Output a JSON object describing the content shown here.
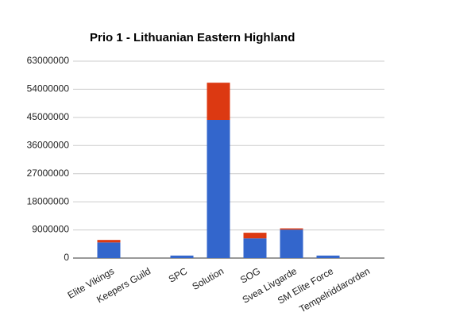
{
  "chart_data": {
    "type": "stacked_bar",
    "title": "Prio 1 - Lithuanian Eastern Highland",
    "categories": [
      "Elite Vikings",
      "Keepers Guild",
      "SPC",
      "Solution",
      "SOG",
      "Svea Livgarde",
      "SM Elite Force",
      "Tempelriddarorden"
    ],
    "series": [
      {
        "color": "#3366cc",
        "values": [
          5000000,
          0,
          800000,
          44200000,
          6300000,
          9100000,
          800000,
          0
        ]
      },
      {
        "color": "#dc3912",
        "values": [
          800000,
          0,
          0,
          11900000,
          1800000,
          400000,
          0,
          0
        ]
      }
    ],
    "ylim": [
      0,
      63000000
    ],
    "yticks": [
      0,
      9000000,
      18000000,
      27000000,
      36000000,
      45000000,
      54000000,
      63000000
    ],
    "grid": true
  }
}
